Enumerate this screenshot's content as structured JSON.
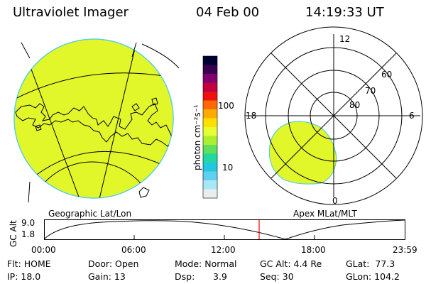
{
  "header": {
    "instrument": "Ultraviolet Imager",
    "date": "04 Feb 00",
    "time": "14:19:33 UT"
  },
  "colorbar": {
    "label": "photon cm⁻²s⁻¹",
    "ticks": [
      "100",
      "10"
    ],
    "colors": [
      "#000033",
      "#3a0050",
      "#800070",
      "#c00040",
      "#ee1010",
      "#ff6a00",
      "#ffaa00",
      "#ffe000",
      "#e6ff30",
      "#a8f030",
      "#5ee05a",
      "#20d8a0",
      "#20c8e0",
      "#60d0f0",
      "#a8e8f4",
      "#e8eef0"
    ]
  },
  "geo_panel": {
    "caption": "Geographic Lat/Lon",
    "fill_color": "#e2f72a"
  },
  "mag_panel": {
    "caption": "Apex MLat/MLT",
    "mlt_labels": {
      "top": "12",
      "left": "18",
      "right": "6",
      "bottom": "0"
    },
    "lat_labels": [
      "60",
      "70",
      "80"
    ]
  },
  "altitude_plot": {
    "ylabel": "GC Alt",
    "y_ticks": [
      "9.0",
      "1.8"
    ],
    "x_ticks": [
      "00:00",
      "06:00",
      "12:00",
      "18:00",
      "23:59"
    ],
    "marker_color": "#ff0000"
  },
  "status": {
    "flt": "Flt: HOME",
    "ip": "IP: 18.0",
    "door": "Door: Open",
    "gain": "Gain: 13",
    "mode": "Mode: Normal",
    "dsp_label": "Dsp:",
    "dsp_value": "3.9",
    "gc_alt": "GC Alt: 4.4 Re",
    "seq": "Seq: 30",
    "glat": "GLat:  77.3",
    "glon": "GLon: 104.2"
  }
}
